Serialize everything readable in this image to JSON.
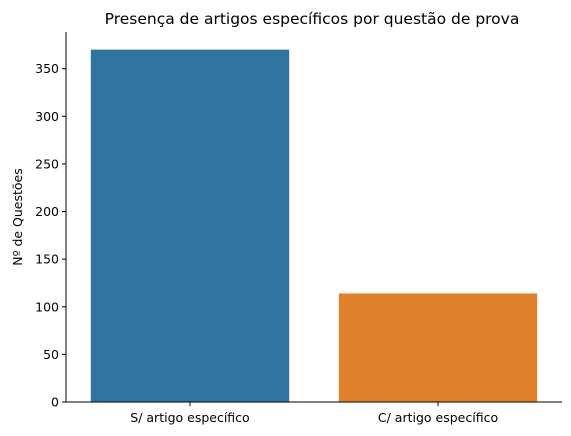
{
  "chart_data": {
    "type": "bar",
    "title": "Presença de artigos específicos por questão de prova",
    "xlabel": "",
    "ylabel": "Nº de Questões",
    "categories": [
      "S/ artigo específico",
      "C/ artigo específico"
    ],
    "values": [
      370,
      114
    ],
    "colors": [
      "#3274a1",
      "#e1812c"
    ],
    "ylim": [
      0,
      388.5
    ],
    "yticks": [
      0,
      50,
      100,
      150,
      200,
      250,
      300,
      350
    ],
    "grid": false,
    "legend": "none"
  }
}
